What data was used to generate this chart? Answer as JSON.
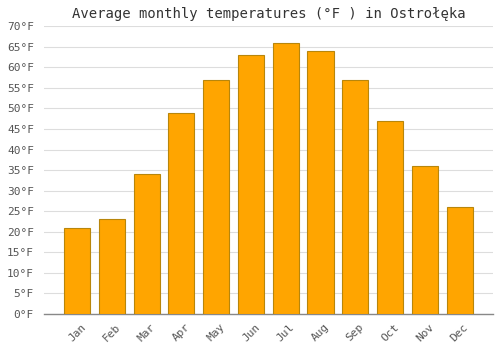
{
  "title": "Average monthly temperatures (°F ) in Ostrołęka",
  "months": [
    "Jan",
    "Feb",
    "Mar",
    "Apr",
    "May",
    "Jun",
    "Jul",
    "Aug",
    "Sep",
    "Oct",
    "Nov",
    "Dec"
  ],
  "values": [
    21,
    23,
    34,
    49,
    57,
    63,
    66,
    64,
    57,
    47,
    36,
    26
  ],
  "bar_color": "#FFA500",
  "bar_edge_color": "#b8860b",
  "ylim": [
    0,
    70
  ],
  "yticks": [
    0,
    5,
    10,
    15,
    20,
    25,
    30,
    35,
    40,
    45,
    50,
    55,
    60,
    65,
    70
  ],
  "ytick_labels": [
    "0°F",
    "5°F",
    "10°F",
    "15°F",
    "20°F",
    "25°F",
    "30°F",
    "35°F",
    "40°F",
    "45°F",
    "50°F",
    "55°F",
    "60°F",
    "65°F",
    "70°F"
  ],
  "background_color": "#ffffff",
  "grid_color": "#dddddd",
  "title_fontsize": 10,
  "tick_fontsize": 8,
  "bar_width": 0.75
}
